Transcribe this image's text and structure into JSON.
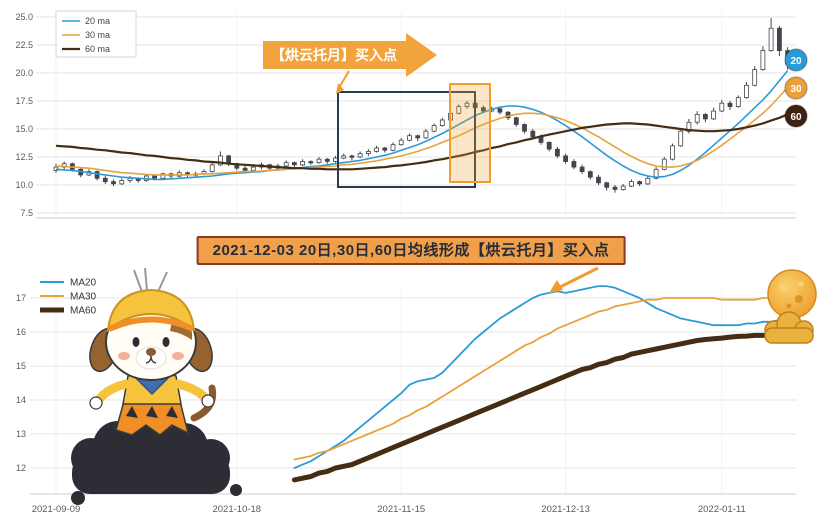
{
  "banner": {
    "text": "2021-12-03 20日,30日,60日均线形成【烘云托月】买入点"
  },
  "colors": {
    "ma20": "#2b9bd7",
    "ma30": "#e9a23b",
    "ma60": "#452d14",
    "candle_up_fill": "#ffffff",
    "candle_down_fill": "#41454d",
    "candle_stroke": "#41454d",
    "grid": "#e4e4e4",
    "axis_text": "#5a5a5a",
    "accent_orange": "#f09d2e",
    "highlight_box": "#2c3a52",
    "band_fill": "rgba(243,166,56,0.28)",
    "band_border": "#ef9d2e",
    "callout_bg": "#f3a33b",
    "callout_text": "#ffffff",
    "banner_bg": "#f0a04a",
    "banner_border": "#8b3a22",
    "banner_text": "#262b38",
    "badge_20": "#2b9bd7",
    "badge_30": "#e9a23b",
    "badge_60": "#3f2012",
    "badge_text": "#ffffff"
  },
  "top_chart": {
    "legend": [
      {
        "label": "20 ma",
        "color_key": "ma20"
      },
      {
        "label": "30 ma",
        "color_key": "ma30"
      },
      {
        "label": "60 ma",
        "color_key": "ma60"
      }
    ],
    "callout_label": "【烘云托月】买入点",
    "badges": [
      {
        "label": "20",
        "color_key": "badge_20"
      },
      {
        "label": "30",
        "color_key": "badge_30"
      },
      {
        "label": "60",
        "color_key": "badge_60"
      }
    ]
  },
  "bottom_chart": {
    "legend": [
      {
        "label": "MA20",
        "color_key": "ma20",
        "width": 2
      },
      {
        "label": "MA30",
        "color_key": "ma30",
        "width": 2
      },
      {
        "label": "MA60",
        "color_key": "ma60",
        "width": 5
      }
    ]
  },
  "chart_data": [
    {
      "type": "candlestick",
      "title": "",
      "grid": true,
      "ylim": [
        7.5,
        25.0
      ],
      "y_ticks": [
        25.0,
        22.5,
        20.0,
        17.5,
        15.0,
        12.5,
        10.0,
        7.5
      ],
      "x_tick_labels": [
        "2021-09-09",
        "2021-10-18",
        "2021-11-15",
        "2021-12-13",
        "2022-01-11"
      ],
      "x_tick_indices": [
        0,
        22,
        42,
        62,
        81
      ],
      "annotations": {
        "callout": "【烘云托月】买入点",
        "buy_signal_date": "2021-12-03",
        "pattern_name": "烘云托月"
      },
      "ohlc": [
        [
          11.3,
          11.9,
          11.1,
          11.6
        ],
        [
          11.6,
          12.1,
          11.4,
          11.9
        ],
        [
          11.9,
          12.0,
          11.2,
          11.4
        ],
        [
          11.4,
          11.5,
          10.7,
          10.9
        ],
        [
          10.9,
          11.4,
          10.8,
          11.2
        ],
        [
          11.2,
          11.3,
          10.4,
          10.6
        ],
        [
          10.6,
          10.8,
          10.1,
          10.3
        ],
        [
          10.3,
          10.5,
          9.9,
          10.1
        ],
        [
          10.1,
          10.6,
          10.0,
          10.4
        ],
        [
          10.4,
          10.8,
          10.2,
          10.6
        ],
        [
          10.6,
          10.7,
          10.2,
          10.4
        ],
        [
          10.4,
          10.9,
          10.3,
          10.8
        ],
        [
          10.8,
          10.9,
          10.4,
          10.6
        ],
        [
          10.6,
          11.1,
          10.5,
          11.0
        ],
        [
          11.0,
          11.1,
          10.6,
          10.8
        ],
        [
          10.8,
          11.3,
          10.7,
          11.1
        ],
        [
          11.1,
          11.2,
          10.7,
          10.9
        ],
        [
          10.9,
          11.2,
          10.7,
          11.0
        ],
        [
          11.0,
          11.4,
          10.9,
          11.2
        ],
        [
          11.2,
          12.0,
          11.1,
          11.8
        ],
        [
          11.8,
          13.0,
          11.7,
          12.6
        ],
        [
          12.6,
          12.7,
          11.7,
          11.9
        ],
        [
          11.9,
          12.0,
          11.3,
          11.5
        ],
        [
          11.5,
          11.7,
          11.1,
          11.3
        ],
        [
          11.3,
          11.8,
          11.2,
          11.6
        ],
        [
          11.6,
          12.0,
          11.4,
          11.8
        ],
        [
          11.8,
          11.9,
          11.3,
          11.5
        ],
        [
          11.5,
          11.9,
          11.4,
          11.7
        ],
        [
          11.7,
          12.2,
          11.6,
          12.0
        ],
        [
          12.0,
          12.1,
          11.6,
          11.8
        ],
        [
          11.8,
          12.3,
          11.7,
          12.1
        ],
        [
          12.1,
          12.2,
          11.8,
          12.0
        ],
        [
          12.0,
          12.5,
          11.9,
          12.3
        ],
        [
          12.3,
          12.4,
          11.9,
          12.1
        ],
        [
          12.1,
          12.6,
          12.0,
          12.4
        ],
        [
          12.4,
          12.8,
          12.3,
          12.6
        ],
        [
          12.6,
          12.7,
          12.2,
          12.5
        ],
        [
          12.5,
          13.0,
          12.4,
          12.8
        ],
        [
          12.8,
          13.2,
          12.6,
          13.0
        ],
        [
          13.0,
          13.5,
          12.9,
          13.3
        ],
        [
          13.3,
          13.4,
          12.9,
          13.1
        ],
        [
          13.1,
          13.8,
          13.0,
          13.6
        ],
        [
          13.6,
          14.2,
          13.5,
          14.0
        ],
        [
          14.0,
          14.6,
          13.9,
          14.4
        ],
        [
          14.4,
          14.5,
          13.9,
          14.2
        ],
        [
          14.2,
          15.0,
          14.1,
          14.8
        ],
        [
          14.8,
          15.5,
          14.7,
          15.3
        ],
        [
          15.3,
          16.0,
          15.2,
          15.8
        ],
        [
          15.8,
          16.6,
          15.7,
          16.4
        ],
        [
          16.4,
          17.2,
          16.3,
          17.0
        ],
        [
          17.0,
          17.5,
          16.8,
          17.3
        ],
        [
          17.3,
          17.4,
          16.7,
          16.9
        ],
        [
          16.9,
          17.1,
          16.4,
          16.6
        ],
        [
          16.6,
          17.0,
          16.5,
          16.8
        ],
        [
          16.8,
          16.9,
          16.3,
          16.5
        ],
        [
          16.5,
          16.6,
          15.8,
          16.0
        ],
        [
          16.0,
          16.1,
          15.2,
          15.4
        ],
        [
          15.4,
          15.5,
          14.6,
          14.8
        ],
        [
          14.8,
          15.0,
          14.1,
          14.3
        ],
        [
          14.3,
          14.5,
          13.6,
          13.8
        ],
        [
          13.8,
          13.9,
          13.0,
          13.2
        ],
        [
          13.2,
          13.4,
          12.4,
          12.6
        ],
        [
          12.6,
          12.8,
          11.9,
          12.1
        ],
        [
          12.1,
          12.3,
          11.4,
          11.6
        ],
        [
          11.6,
          11.8,
          11.0,
          11.2
        ],
        [
          11.2,
          11.3,
          10.5,
          10.7
        ],
        [
          10.7,
          10.9,
          10.0,
          10.2
        ],
        [
          10.2,
          10.3,
          9.5,
          9.8
        ],
        [
          9.8,
          10.0,
          9.3,
          9.6
        ],
        [
          9.6,
          10.1,
          9.5,
          9.9
        ],
        [
          9.9,
          10.5,
          9.8,
          10.3
        ],
        [
          10.3,
          10.4,
          9.9,
          10.1
        ],
        [
          10.1,
          10.8,
          10.0,
          10.6
        ],
        [
          10.6,
          11.6,
          10.5,
          11.4
        ],
        [
          11.4,
          12.5,
          11.3,
          12.3
        ],
        [
          12.3,
          13.7,
          12.2,
          13.5
        ],
        [
          13.5,
          15.0,
          13.4,
          14.8
        ],
        [
          14.8,
          15.9,
          14.6,
          15.6
        ],
        [
          15.6,
          16.6,
          15.4,
          16.3
        ],
        [
          16.3,
          16.4,
          15.6,
          15.9
        ],
        [
          15.9,
          16.9,
          15.8,
          16.6
        ],
        [
          16.6,
          17.6,
          16.5,
          17.3
        ],
        [
          17.3,
          17.5,
          16.7,
          17.0
        ],
        [
          17.0,
          18.0,
          16.9,
          17.8
        ],
        [
          17.8,
          19.2,
          17.7,
          18.9
        ],
        [
          18.9,
          20.6,
          18.8,
          20.3
        ],
        [
          20.3,
          22.4,
          20.2,
          22.0
        ],
        [
          22.0,
          24.9,
          21.9,
          24.0
        ],
        [
          24.0,
          24.2,
          21.5,
          22.0
        ],
        [
          22.0,
          22.3,
          20.3,
          20.8
        ]
      ],
      "series": [
        {
          "name": "20 ma",
          "color_key": "ma20",
          "width": 1.6,
          "values": [
            11.4,
            11.35,
            11.3,
            11.2,
            11.1,
            11.0,
            10.9,
            10.8,
            10.7,
            10.65,
            10.6,
            10.55,
            10.5,
            10.5,
            10.55,
            10.6,
            10.65,
            10.7,
            10.75,
            10.8,
            10.9,
            11.0,
            11.05,
            11.1,
            11.15,
            11.2,
            11.3,
            11.35,
            11.4,
            11.5,
            11.55,
            11.65,
            11.7,
            11.8,
            11.9,
            12.0,
            12.1,
            12.2,
            12.35,
            12.5,
            12.65,
            12.85,
            13.1,
            13.35,
            13.6,
            13.9,
            14.25,
            14.6,
            15.0,
            15.4,
            15.8,
            16.2,
            16.5,
            16.75,
            16.95,
            17.05,
            17.05,
            16.95,
            16.75,
            16.5,
            16.15,
            15.75,
            15.3,
            14.8,
            14.3,
            13.75,
            13.2,
            12.65,
            12.15,
            11.7,
            11.3,
            11.0,
            10.8,
            10.7,
            10.75,
            10.95,
            11.3,
            11.75,
            12.3,
            12.9,
            13.55,
            14.2,
            14.85,
            15.5,
            16.2,
            16.9,
            17.6,
            18.4,
            19.3,
            20.2
          ]
        },
        {
          "name": "30 ma",
          "color_key": "ma30",
          "width": 1.6,
          "values": [
            11.7,
            11.65,
            11.6,
            11.55,
            11.5,
            11.4,
            11.3,
            11.2,
            11.1,
            11.05,
            11.0,
            10.95,
            10.9,
            10.9,
            10.9,
            10.9,
            10.9,
            10.95,
            11.0,
            11.0,
            11.05,
            11.1,
            11.15,
            11.2,
            11.2,
            11.25,
            11.3,
            11.35,
            11.4,
            11.45,
            11.5,
            11.55,
            11.6,
            11.65,
            11.7,
            11.8,
            11.85,
            11.95,
            12.05,
            12.15,
            12.3,
            12.45,
            12.6,
            12.8,
            13.0,
            13.25,
            13.5,
            13.8,
            14.1,
            14.4,
            14.75,
            15.1,
            15.4,
            15.7,
            15.95,
            16.15,
            16.3,
            16.4,
            16.4,
            16.35,
            16.2,
            16.0,
            15.75,
            15.45,
            15.1,
            14.7,
            14.3,
            13.85,
            13.4,
            12.95,
            12.55,
            12.2,
            11.9,
            11.7,
            11.6,
            11.6,
            11.7,
            11.9,
            12.2,
            12.6,
            13.05,
            13.55,
            14.1,
            14.65,
            15.2,
            15.8,
            16.4,
            17.1,
            17.9,
            18.7
          ]
        },
        {
          "name": "60 ma",
          "color_key": "ma60",
          "width": 2.2,
          "values": [
            13.5,
            13.45,
            13.4,
            13.3,
            13.25,
            13.15,
            13.1,
            13.0,
            12.9,
            12.85,
            12.75,
            12.65,
            12.6,
            12.5,
            12.4,
            12.35,
            12.25,
            12.2,
            12.1,
            12.05,
            12.0,
            11.9,
            11.85,
            11.8,
            11.75,
            11.7,
            11.65,
            11.6,
            11.55,
            11.5,
            11.5,
            11.45,
            11.45,
            11.4,
            11.4,
            11.4,
            11.4,
            11.45,
            11.5,
            11.55,
            11.6,
            11.7,
            11.75,
            11.85,
            11.95,
            12.05,
            12.2,
            12.3,
            12.45,
            12.6,
            12.75,
            12.95,
            13.1,
            13.3,
            13.45,
            13.65,
            13.8,
            14.0,
            14.15,
            14.35,
            14.5,
            14.65,
            14.8,
            14.95,
            15.1,
            15.2,
            15.3,
            15.4,
            15.45,
            15.5,
            15.5,
            15.45,
            15.4,
            15.3,
            15.2,
            15.1,
            15.0,
            14.9,
            14.85,
            14.8,
            14.8,
            14.85,
            14.9,
            15.0,
            15.15,
            15.3,
            15.5,
            15.75,
            16.0,
            16.3
          ]
        }
      ]
    },
    {
      "type": "line",
      "title": "",
      "grid": true,
      "ylim": [
        11.5,
        17.6
      ],
      "y_ticks": [
        17,
        16,
        15,
        14,
        13,
        12
      ],
      "x_tick_labels": [
        "2021-09-09",
        "2021-10-18",
        "2021-11-15",
        "2021-12-13",
        "2022-01-11"
      ],
      "x_tick_indices": [
        0,
        22,
        42,
        62,
        81
      ],
      "start_index": 29,
      "series": [
        {
          "name": "MA20",
          "color_key": "ma20",
          "width": 1.8,
          "values": [
            12.0,
            12.1,
            12.2,
            12.35,
            12.5,
            12.65,
            12.8,
            13.0,
            13.2,
            13.4,
            13.6,
            13.8,
            14.0,
            14.2,
            14.45,
            14.55,
            14.6,
            14.65,
            14.8,
            15.05,
            15.3,
            15.55,
            15.8,
            16.0,
            16.2,
            16.4,
            16.55,
            16.7,
            16.85,
            17.0,
            17.1,
            17.15,
            17.2,
            17.15,
            17.2,
            17.25,
            17.3,
            17.35,
            17.35,
            17.3,
            17.2,
            17.1,
            17.0,
            16.85,
            16.7,
            16.6,
            16.5,
            16.4,
            16.35,
            16.3,
            16.25,
            16.2,
            16.2,
            16.2,
            16.2,
            16.25,
            16.25,
            16.3,
            16.3,
            16.35,
            16.4
          ]
        },
        {
          "name": "MA30",
          "color_key": "ma30",
          "width": 1.8,
          "values": [
            12.25,
            12.3,
            12.35,
            12.45,
            12.5,
            12.6,
            12.7,
            12.8,
            12.9,
            13.0,
            13.1,
            13.2,
            13.3,
            13.45,
            13.55,
            13.7,
            13.8,
            13.95,
            14.1,
            14.25,
            14.4,
            14.55,
            14.7,
            14.85,
            15.0,
            15.15,
            15.3,
            15.45,
            15.6,
            15.7,
            15.85,
            15.95,
            16.1,
            16.2,
            16.3,
            16.4,
            16.5,
            16.6,
            16.65,
            16.75,
            16.8,
            16.85,
            16.9,
            16.95,
            16.95,
            17.0,
            17.0,
            17.0,
            17.0,
            17.0,
            17.0,
            17.0,
            16.95,
            16.95,
            16.95,
            16.95,
            16.95,
            17.0,
            17.0,
            17.0,
            17.0
          ]
        },
        {
          "name": "MA60",
          "color_key": "ma60",
          "width": 5,
          "values": [
            11.65,
            11.7,
            11.75,
            11.85,
            11.9,
            12.0,
            12.05,
            12.1,
            12.2,
            12.3,
            12.4,
            12.5,
            12.6,
            12.7,
            12.8,
            12.9,
            13.0,
            13.1,
            13.2,
            13.3,
            13.4,
            13.5,
            13.6,
            13.7,
            13.8,
            13.9,
            14.0,
            14.1,
            14.2,
            14.3,
            14.4,
            14.5,
            14.6,
            14.7,
            14.8,
            14.9,
            14.95,
            15.05,
            15.1,
            15.2,
            15.25,
            15.35,
            15.4,
            15.45,
            15.5,
            15.55,
            15.6,
            15.65,
            15.7,
            15.75,
            15.78,
            15.8,
            15.82,
            15.85,
            15.87,
            15.88,
            15.9,
            15.9,
            15.9,
            15.9,
            15.9
          ]
        }
      ]
    }
  ]
}
